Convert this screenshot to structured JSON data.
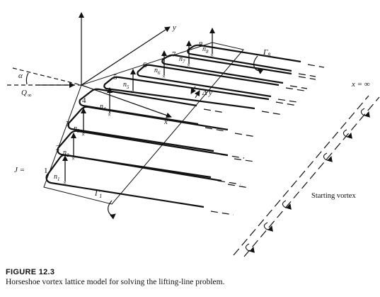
{
  "figure": {
    "axis_labels": {
      "y": "y",
      "x": "x",
      "alpha": "α",
      "q_inf": "Q",
      "q_inf_sub": "∞",
      "x_inf": "x = ∞",
      "j_eq": "J ="
    },
    "panel_numbers": [
      "1",
      "2",
      "3",
      "4",
      "5",
      "6",
      "7",
      "8"
    ],
    "normals": [
      {
        "base": "n",
        "sub": "1"
      },
      {
        "base": "n",
        "sub": "2"
      },
      {
        "base": "n",
        "sub": "3"
      },
      {
        "base": "n",
        "sub": "4"
      },
      {
        "base": "n",
        "sub": "5"
      },
      {
        "base": "n",
        "sub": "6"
      },
      {
        "base": "n",
        "sub": "7"
      },
      {
        "base": "n",
        "sub": "8"
      }
    ],
    "gamma_1": {
      "base": "Γ",
      "sub": "1"
    },
    "gamma_8": {
      "base": "Γ",
      "sub": "8"
    },
    "delta_y": "Δ y",
    "starting_vortex": "Starting vortex"
  },
  "caption": {
    "label": "FIGURE 12.3",
    "text": "Horseshoe vortex lattice model for solving the lifting-line problem."
  }
}
